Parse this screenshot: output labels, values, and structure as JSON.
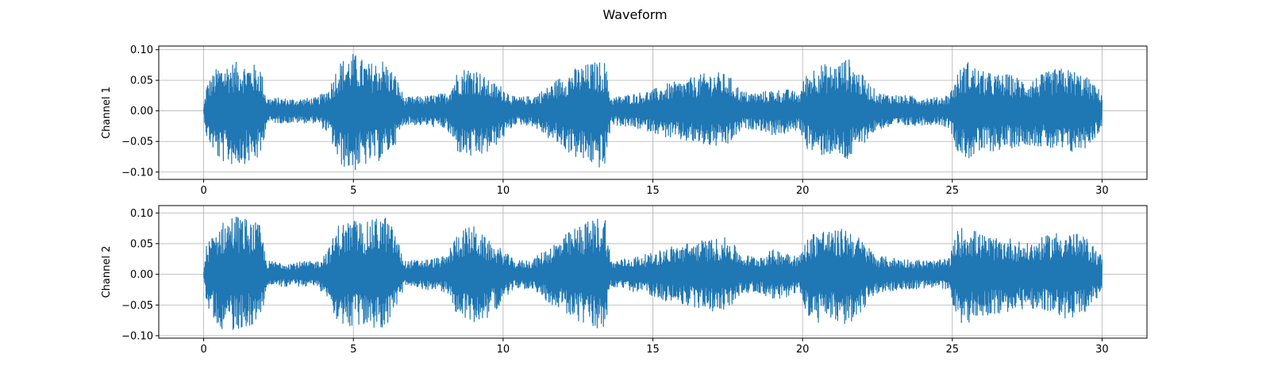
{
  "chart_data": {
    "type": "line",
    "title": "Waveform",
    "color": "#1f77b4",
    "grid": true,
    "xlim": [
      -1.5,
      31.5
    ],
    "x_ticks": [
      0,
      5,
      10,
      15,
      20,
      25,
      30
    ],
    "subplots": [
      {
        "name": "channel-1",
        "ylabel": "Channel 1",
        "ylim": [
          -0.112,
          0.106
        ],
        "y_ticks": [
          -0.1,
          -0.05,
          0.0,
          0.05,
          0.1
        ],
        "y_tick_labels": [
          "−0.10",
          "−0.05",
          "0.00",
          "0.05",
          "0.10"
        ],
        "envelope": {
          "t": [
            0,
            0.1,
            0.5,
            1.0,
            1.5,
            1.9,
            2.1,
            3.0,
            3.8,
            4.2,
            4.5,
            5.0,
            5.5,
            6.0,
            6.4,
            6.7,
            7.5,
            8.1,
            8.5,
            9.0,
            9.5,
            10.0,
            10.4,
            11.0,
            11.5,
            12.0,
            12.5,
            13.0,
            13.4,
            13.6,
            14.5,
            15.0,
            15.5,
            16.0,
            16.5,
            17.0,
            17.5,
            18.0,
            18.5,
            19.0,
            19.5,
            19.9,
            20.1,
            20.5,
            21.0,
            21.5,
            21.8,
            22.5,
            23.5,
            24.5,
            24.9,
            25.2,
            25.5,
            26.0,
            26.5,
            26.9,
            27.5,
            28.0,
            28.5,
            29.0,
            29.5,
            30.0
          ],
          "max": [
            0.005,
            0.045,
            0.075,
            0.08,
            0.078,
            0.074,
            0.022,
            0.02,
            0.022,
            0.04,
            0.08,
            0.095,
            0.078,
            0.085,
            0.06,
            0.022,
            0.025,
            0.03,
            0.068,
            0.075,
            0.05,
            0.04,
            0.022,
            0.025,
            0.04,
            0.06,
            0.072,
            0.08,
            0.082,
            0.022,
            0.03,
            0.035,
            0.045,
            0.05,
            0.058,
            0.065,
            0.06,
            0.032,
            0.03,
            0.035,
            0.035,
            0.03,
            0.06,
            0.078,
            0.075,
            0.088,
            0.07,
            0.03,
            0.025,
            0.022,
            0.028,
            0.065,
            0.082,
            0.065,
            0.06,
            0.06,
            0.05,
            0.06,
            0.07,
            0.068,
            0.055,
            0.03
          ],
          "min": [
            -0.005,
            -0.045,
            -0.082,
            -0.09,
            -0.085,
            -0.08,
            -0.02,
            -0.02,
            -0.02,
            -0.04,
            -0.088,
            -0.1,
            -0.088,
            -0.08,
            -0.055,
            -0.022,
            -0.025,
            -0.03,
            -0.07,
            -0.08,
            -0.07,
            -0.045,
            -0.022,
            -0.025,
            -0.045,
            -0.062,
            -0.08,
            -0.09,
            -0.098,
            -0.022,
            -0.03,
            -0.035,
            -0.045,
            -0.05,
            -0.055,
            -0.06,
            -0.058,
            -0.03,
            -0.03,
            -0.04,
            -0.038,
            -0.03,
            -0.06,
            -0.075,
            -0.072,
            -0.085,
            -0.065,
            -0.03,
            -0.025,
            -0.022,
            -0.028,
            -0.07,
            -0.08,
            -0.07,
            -0.065,
            -0.062,
            -0.055,
            -0.06,
            -0.068,
            -0.07,
            -0.06,
            -0.03
          ]
        }
      },
      {
        "name": "channel-2",
        "ylabel": "Channel 2",
        "ylim": [
          -0.104,
          0.112
        ],
        "y_ticks": [
          -0.1,
          -0.05,
          0.0,
          0.05,
          0.1
        ],
        "y_tick_labels": [
          "−0.10",
          "−0.05",
          "0.00",
          "0.05",
          "0.10"
        ],
        "envelope": {
          "t": [
            0,
            0.1,
            0.5,
            1.0,
            1.5,
            1.9,
            2.1,
            3.0,
            3.8,
            4.2,
            4.5,
            5.0,
            5.5,
            6.0,
            6.4,
            6.7,
            7.5,
            8.1,
            8.5,
            9.0,
            9.5,
            10.0,
            10.4,
            11.0,
            11.5,
            12.0,
            12.5,
            13.0,
            13.4,
            13.6,
            14.5,
            15.0,
            15.5,
            16.0,
            16.5,
            17.0,
            17.5,
            18.0,
            18.5,
            19.0,
            19.5,
            19.9,
            20.1,
            20.5,
            21.0,
            21.5,
            21.8,
            22.5,
            23.5,
            24.5,
            24.9,
            25.2,
            25.5,
            26.0,
            26.5,
            26.9,
            27.5,
            28.0,
            28.5,
            29.0,
            29.5,
            30.0
          ],
          "max": [
            0.005,
            0.05,
            0.08,
            0.1,
            0.09,
            0.08,
            0.022,
            0.02,
            0.022,
            0.045,
            0.082,
            0.09,
            0.085,
            0.1,
            0.07,
            0.022,
            0.025,
            0.03,
            0.072,
            0.08,
            0.055,
            0.04,
            0.022,
            0.025,
            0.045,
            0.062,
            0.08,
            0.09,
            0.1,
            0.022,
            0.03,
            0.035,
            0.045,
            0.05,
            0.055,
            0.058,
            0.06,
            0.032,
            0.03,
            0.04,
            0.04,
            0.03,
            0.055,
            0.078,
            0.07,
            0.078,
            0.065,
            0.03,
            0.025,
            0.022,
            0.028,
            0.075,
            0.08,
            0.065,
            0.058,
            0.06,
            0.05,
            0.06,
            0.07,
            0.07,
            0.058,
            0.03
          ],
          "min": [
            -0.005,
            -0.05,
            -0.088,
            -0.092,
            -0.085,
            -0.078,
            -0.02,
            -0.02,
            -0.02,
            -0.045,
            -0.082,
            -0.088,
            -0.085,
            -0.092,
            -0.06,
            -0.022,
            -0.025,
            -0.03,
            -0.07,
            -0.08,
            -0.07,
            -0.045,
            -0.022,
            -0.025,
            -0.045,
            -0.062,
            -0.078,
            -0.088,
            -0.09,
            -0.022,
            -0.03,
            -0.035,
            -0.045,
            -0.05,
            -0.055,
            -0.06,
            -0.058,
            -0.03,
            -0.03,
            -0.04,
            -0.038,
            -0.03,
            -0.065,
            -0.08,
            -0.078,
            -0.085,
            -0.07,
            -0.03,
            -0.025,
            -0.022,
            -0.028,
            -0.08,
            -0.08,
            -0.07,
            -0.065,
            -0.062,
            -0.055,
            -0.06,
            -0.068,
            -0.075,
            -0.062,
            -0.03
          ]
        }
      }
    ]
  }
}
